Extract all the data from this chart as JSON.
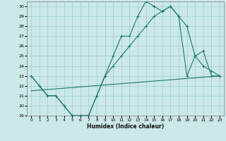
{
  "xlabel": "Humidex (Indice chaleur)",
  "bg_color": "#cce8e8",
  "line_color": "#1a7a6e",
  "grid_color": "#9ecece",
  "xlim": [
    -0.5,
    23.5
  ],
  "ylim": [
    19,
    30.5
  ],
  "xticks": [
    0,
    1,
    2,
    3,
    4,
    5,
    6,
    7,
    8,
    9,
    10,
    11,
    12,
    13,
    14,
    15,
    16,
    17,
    18,
    19,
    20,
    21,
    22,
    23
  ],
  "yticks": [
    19,
    20,
    21,
    22,
    23,
    24,
    25,
    26,
    27,
    28,
    29,
    30
  ],
  "series1_x": [
    0,
    1,
    2,
    3,
    4,
    5,
    6,
    7,
    8,
    9,
    10,
    11,
    12,
    13,
    14,
    15,
    16,
    17,
    18,
    19,
    20,
    21,
    22,
    23
  ],
  "series1_y": [
    23,
    22,
    21,
    21,
    20,
    19,
    19,
    19,
    21,
    23,
    25,
    27,
    27,
    29,
    30.5,
    30,
    29.5,
    30,
    29,
    23,
    25,
    25.5,
    23,
    23
  ],
  "series2_x": [
    0,
    1,
    2,
    3,
    4,
    5,
    6,
    7,
    8,
    9,
    10,
    11,
    12,
    13,
    14,
    15,
    16,
    17,
    18,
    19,
    20,
    21,
    22,
    23
  ],
  "series2_y": [
    23,
    22,
    21,
    21,
    20,
    19,
    19,
    19,
    21,
    23,
    24,
    25,
    26,
    27,
    28,
    29,
    29.5,
    30,
    29,
    28,
    25,
    24,
    23.5,
    23
  ],
  "series3_x": [
    0,
    23
  ],
  "series3_y": [
    21.5,
    23
  ]
}
